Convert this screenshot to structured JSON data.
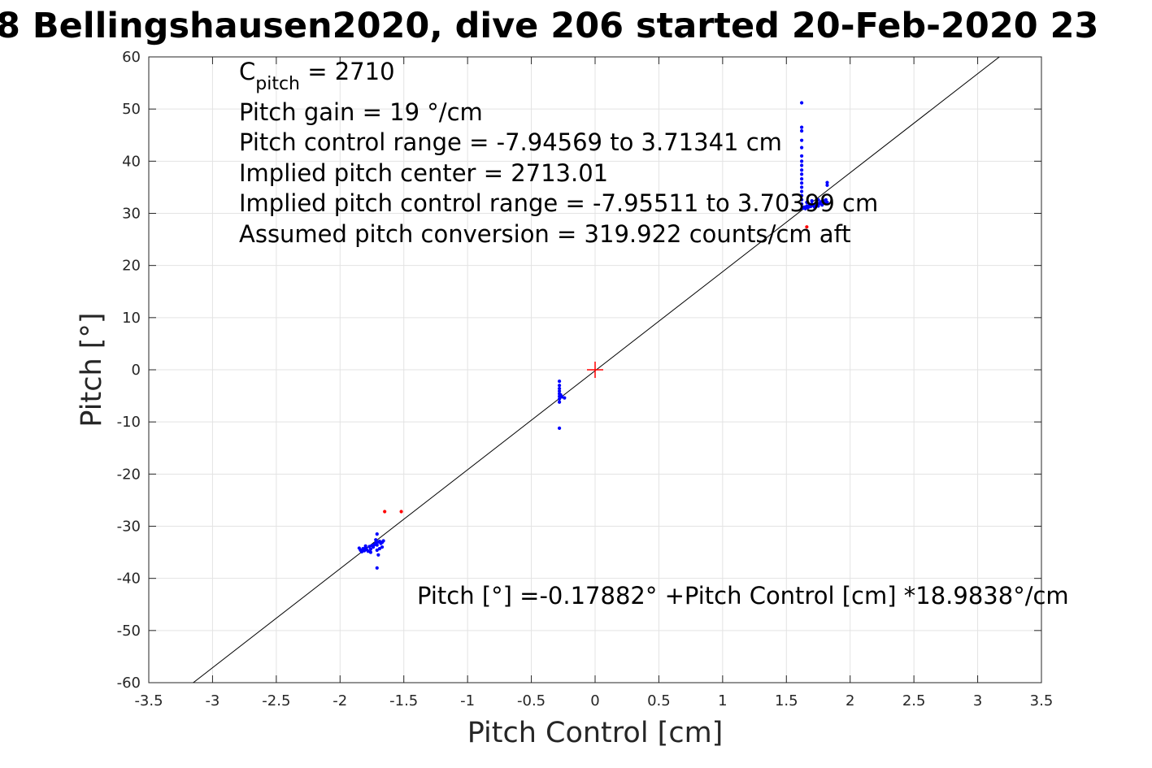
{
  "chart_data": {
    "type": "scatter",
    "title": "8 Bellingshausen2020, dive 206 started 20-Feb-2020 23",
    "xlabel": "Pitch Control [cm]",
    "ylabel": "Pitch [°]",
    "xlim": [
      -3.5,
      3.5
    ],
    "ylim": [
      -60,
      60
    ],
    "xticks": [
      -3.5,
      -3,
      -2.5,
      -2,
      -1.5,
      -1,
      -0.5,
      0,
      0.5,
      1,
      1.5,
      2,
      2.5,
      3,
      3.5
    ],
    "yticks": [
      -60,
      -50,
      -40,
      -30,
      -20,
      -10,
      0,
      10,
      20,
      30,
      40,
      50,
      60
    ],
    "xtick_labels": [
      "-3.5",
      "-3",
      "-2.5",
      "-2",
      "-1.5",
      "-1",
      "-0.5",
      "0",
      "0.5",
      "1",
      "1.5",
      "2",
      "2.5",
      "3",
      "3.5"
    ],
    "ytick_labels": [
      "-60",
      "-50",
      "-40",
      "-30",
      "-20",
      "-10",
      "0",
      "10",
      "20",
      "30",
      "40",
      "50",
      "60"
    ],
    "grid": true,
    "annotations": {
      "c_pitch_main": "C",
      "c_pitch_sub": "pitch",
      "c_pitch_value": " = 2710",
      "lines": [
        "Pitch gain = 19 °/cm",
        "Pitch control range = -7.94569 to 3.71341 cm",
        "Implied pitch center = 2713.01",
        "Implied pitch control range = -7.95511 to 3.70399 cm",
        "Assumed pitch conversion = 319.922 counts/cm aft"
      ],
      "fit_equation": "Pitch [°] =-0.17882° +Pitch Control [cm] *18.9838°/cm"
    },
    "fit_line": {
      "intercept": -0.17882,
      "slope": 18.9838
    },
    "center_marker": {
      "x": 0,
      "y": 0,
      "color": "#ff0000"
    },
    "series": [
      {
        "color": "#0000ff",
        "points": [
          [
            -1.85,
            -34.2
          ],
          [
            -1.84,
            -34.6
          ],
          [
            -1.83,
            -34.9
          ],
          [
            -1.82,
            -34.3
          ],
          [
            -1.81,
            -34.7
          ],
          [
            -1.8,
            -34.1
          ],
          [
            -1.79,
            -34.5
          ],
          [
            -1.78,
            -34.8
          ],
          [
            -1.77,
            -33.9
          ],
          [
            -1.76,
            -34.4
          ],
          [
            -1.75,
            -33.7
          ],
          [
            -1.74,
            -34.0
          ],
          [
            -1.73,
            -33.5
          ],
          [
            -1.72,
            -33.2
          ],
          [
            -1.71,
            -33.6
          ],
          [
            -1.7,
            -33.0
          ],
          [
            -1.69,
            -32.9
          ],
          [
            -1.68,
            -33.3
          ],
          [
            -1.67,
            -33.1
          ],
          [
            -1.69,
            -34.3
          ],
          [
            -1.71,
            -34.6
          ],
          [
            -1.72,
            -32.6
          ],
          [
            -1.7,
            -35.5
          ],
          [
            -1.71,
            -31.5
          ],
          [
            -1.71,
            -38.0
          ],
          [
            -1.76,
            -35.0
          ],
          [
            -1.8,
            -33.8
          ],
          [
            -1.66,
            -32.8
          ],
          [
            -1.67,
            -34.0
          ],
          [
            -0.28,
            -2.2
          ],
          [
            -0.28,
            -3.0
          ],
          [
            -0.28,
            -3.6
          ],
          [
            -0.28,
            -4.1
          ],
          [
            -0.28,
            -4.6
          ],
          [
            -0.28,
            -5.1
          ],
          [
            -0.28,
            -5.6
          ],
          [
            -0.28,
            -6.2
          ],
          [
            -0.27,
            -4.8
          ],
          [
            -0.26,
            -5.2
          ],
          [
            -0.24,
            -5.4
          ],
          [
            -0.28,
            -11.2
          ],
          [
            1.62,
            51.2
          ],
          [
            1.62,
            46.5
          ],
          [
            1.62,
            45.8
          ],
          [
            1.62,
            44.0
          ],
          [
            1.62,
            42.6
          ],
          [
            1.62,
            41.0
          ],
          [
            1.62,
            40.0
          ],
          [
            1.62,
            39.2
          ],
          [
            1.62,
            38.3
          ],
          [
            1.62,
            37.5
          ],
          [
            1.62,
            36.6
          ],
          [
            1.62,
            35.8
          ],
          [
            1.62,
            35.0
          ],
          [
            1.62,
            34.2
          ],
          [
            1.62,
            33.4
          ],
          [
            1.62,
            32.6
          ],
          [
            1.62,
            31.8
          ],
          [
            1.63,
            31.0
          ],
          [
            1.64,
            31.2
          ],
          [
            1.65,
            30.9
          ],
          [
            1.66,
            31.4
          ],
          [
            1.67,
            31.1
          ],
          [
            1.68,
            31.6
          ],
          [
            1.69,
            31.3
          ],
          [
            1.7,
            31.8
          ],
          [
            1.71,
            31.5
          ],
          [
            1.72,
            31.2
          ],
          [
            1.73,
            31.7
          ],
          [
            1.74,
            32.0
          ],
          [
            1.75,
            31.4
          ],
          [
            1.76,
            31.9
          ],
          [
            1.77,
            32.2
          ],
          [
            1.78,
            31.6
          ],
          [
            1.79,
            32.4
          ],
          [
            1.8,
            32.0
          ],
          [
            1.81,
            32.6
          ],
          [
            1.82,
            35.4
          ],
          [
            1.82,
            35.9
          ],
          [
            1.82,
            32.1
          ],
          [
            1.75,
            32.6
          ],
          [
            1.7,
            32.4
          ],
          [
            1.66,
            32.1
          ]
        ]
      },
      {
        "color": "#ff0000",
        "points": [
          [
            -1.65,
            -27.2
          ],
          [
            -1.52,
            -27.2
          ],
          [
            1.66,
            27.4
          ]
        ]
      }
    ]
  }
}
